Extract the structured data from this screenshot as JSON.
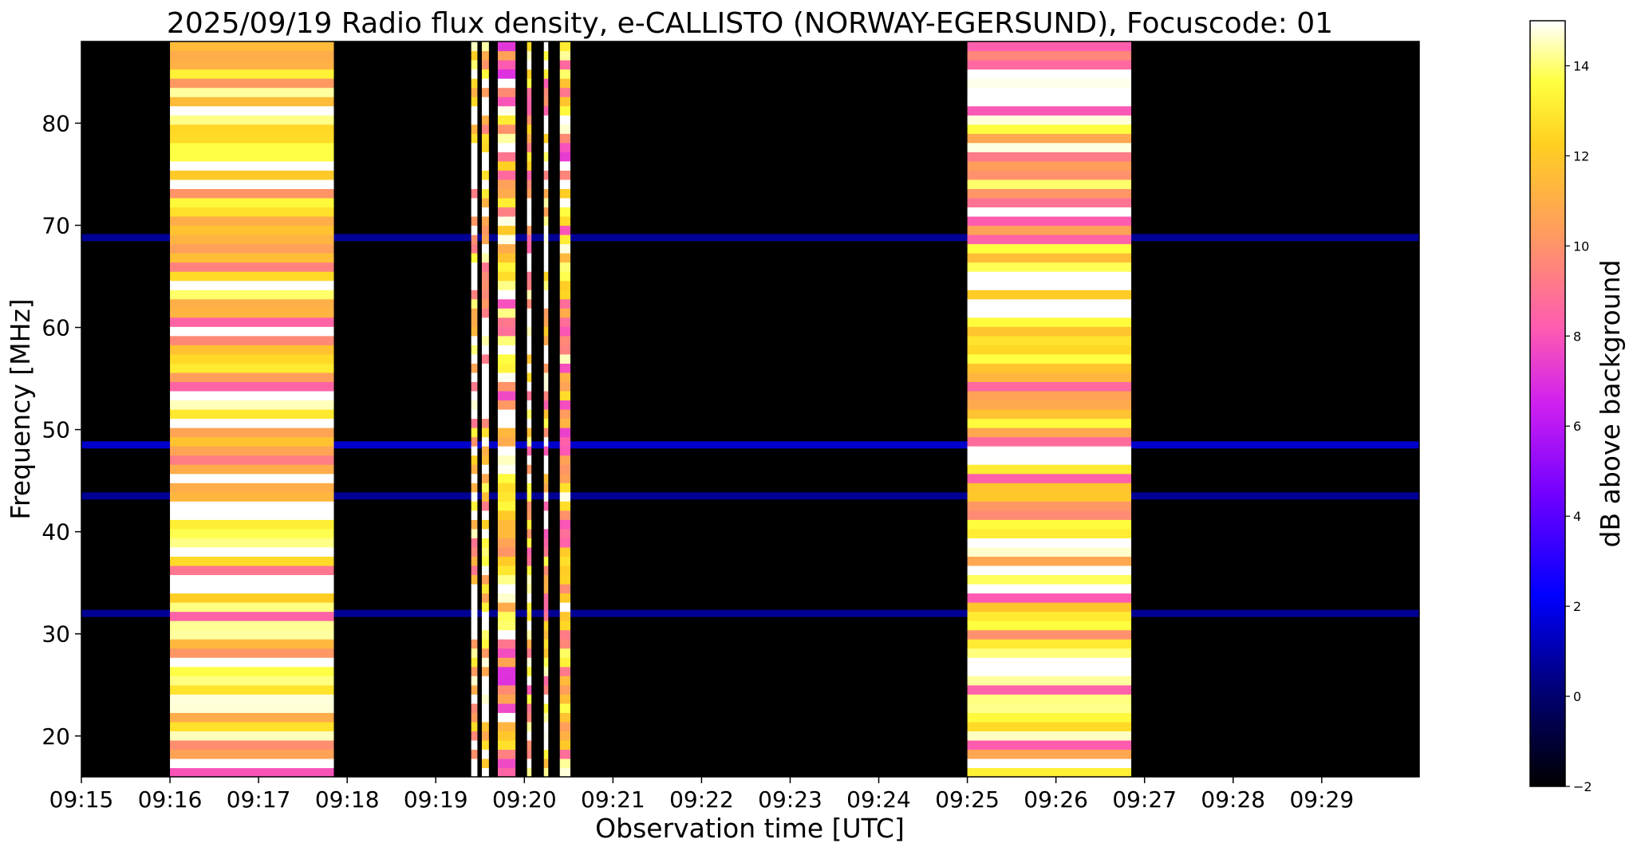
{
  "chart_data": {
    "type": "heatmap",
    "title": "2025/09/19  Radio flux density, e-CALLISTO (NORWAY-EGERSUND), Focuscode: 01",
    "xlabel": "Observation time [UTC]",
    "ylabel": "Frequency [MHz]",
    "x_tick_labels": [
      "09:15",
      "09:16",
      "09:17",
      "09:18",
      "09:19",
      "09:20",
      "09:21",
      "09:22",
      "09:23",
      "09:24",
      "09:25",
      "09:26",
      "09:27",
      "09:28",
      "09:29"
    ],
    "x_ticks_minutes": [
      0,
      1,
      2,
      3,
      4,
      5,
      6,
      7,
      8,
      9,
      10,
      11,
      12,
      13,
      14
    ],
    "xlim_minutes": [
      0,
      15.1
    ],
    "y_ticks": [
      20,
      30,
      40,
      50,
      60,
      70,
      80
    ],
    "y_tick_labels": [
      "20",
      "30",
      "40",
      "50",
      "60",
      "70",
      "80"
    ],
    "ylim": [
      16,
      88
    ],
    "colorbar": {
      "label": "dB above background",
      "range": [
        -2,
        15
      ],
      "ticks": [
        -2,
        0,
        2,
        4,
        6,
        8,
        10,
        12,
        14
      ],
      "tick_labels": [
        "−2",
        "0",
        "2",
        "4",
        "6",
        "8",
        "10",
        "12",
        "14"
      ],
      "colormap": "gnuplot2"
    },
    "background_dB": -2,
    "high_intensity_blocks": [
      {
        "t_start_min": 1.0,
        "t_end_min": 2.85,
        "level_dB": 12
      },
      {
        "t_start_min": 4.4,
        "t_end_min": 4.47,
        "level_dB": 13
      },
      {
        "t_start_min": 4.52,
        "t_end_min": 4.6,
        "level_dB": 13
      },
      {
        "t_start_min": 4.7,
        "t_end_min": 4.9,
        "level_dB": 11
      },
      {
        "t_start_min": 5.03,
        "t_end_min": 5.08,
        "level_dB": 12
      },
      {
        "t_start_min": 5.22,
        "t_end_min": 5.27,
        "level_dB": 12
      },
      {
        "t_start_min": 5.4,
        "t_end_min": 5.52,
        "level_dB": 11
      },
      {
        "t_start_min": 10.0,
        "t_end_min": 11.85,
        "level_dB": 12
      }
    ],
    "persistent_bands": [
      {
        "freq_MHz": 48.5,
        "level_dB": 2
      },
      {
        "freq_MHz": 43.5,
        "level_dB": 1
      },
      {
        "freq_MHz": 32,
        "level_dB": 1
      },
      {
        "freq_MHz": 68.8,
        "level_dB": 1
      }
    ]
  }
}
